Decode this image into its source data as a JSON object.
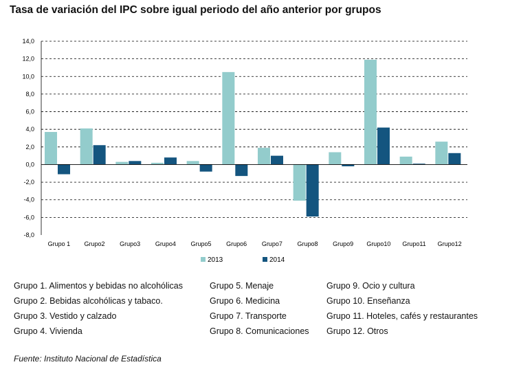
{
  "title": "Tasa de variación del IPC sobre igual periodo del año anterior por grupos",
  "chart_data": {
    "type": "bar",
    "title": "Tasa de variación del IPC sobre igual periodo del año anterior por grupos",
    "categories": [
      "Grupo 1",
      "Grupo2",
      "Grupo3",
      "Grupo4",
      "Grupo5",
      "Grupo6",
      "Grupo7",
      "Grupo8",
      "Grupo9",
      "Grupo10",
      "Grupo11",
      "Grupo12"
    ],
    "series": [
      {
        "name": "2013",
        "color": "#93cccc",
        "values": [
          3.7,
          4.1,
          0.3,
          0.2,
          0.4,
          10.5,
          1.9,
          -4.1,
          1.4,
          11.9,
          0.9,
          2.6
        ]
      },
      {
        "name": "2014",
        "color": "#14557f",
        "values": [
          -1.1,
          2.2,
          0.4,
          0.8,
          -0.8,
          -1.3,
          1.0,
          -5.9,
          -0.2,
          4.2,
          0.1,
          1.3
        ]
      }
    ],
    "y_ticks": [
      "14,0",
      "12,0",
      "10,0",
      "8,0",
      "6,0",
      "4,0",
      "2,0",
      "0,0",
      "-2,0",
      "-4,0",
      "-6,0",
      "-8,0"
    ],
    "ylim": [
      -8,
      14
    ],
    "grid": "dashed horizontal",
    "legend_position": "bottom"
  },
  "groups_legend": [
    [
      "Grupo 1. Alimentos y bebidas no alcohólicas",
      "Grupo 2. Bebidas alcohólicas y  tabaco.",
      "Grupo 3. Vestido y calzado",
      "Grupo 4. Vivienda"
    ],
    [
      "Grupo 5. Menaje",
      "Grupo 6. Medicina",
      "Grupo 7. Transporte",
      "Grupo 8. Comunicaciones"
    ],
    [
      "Grupo 9. Ocio y cultura",
      "Grupo 10. Enseñanza",
      "Grupo 11. Hoteles, cafés y restaurantes",
      "Grupo 12. Otros"
    ]
  ],
  "source": "Fuente: Instituto Nacional de Estadística"
}
